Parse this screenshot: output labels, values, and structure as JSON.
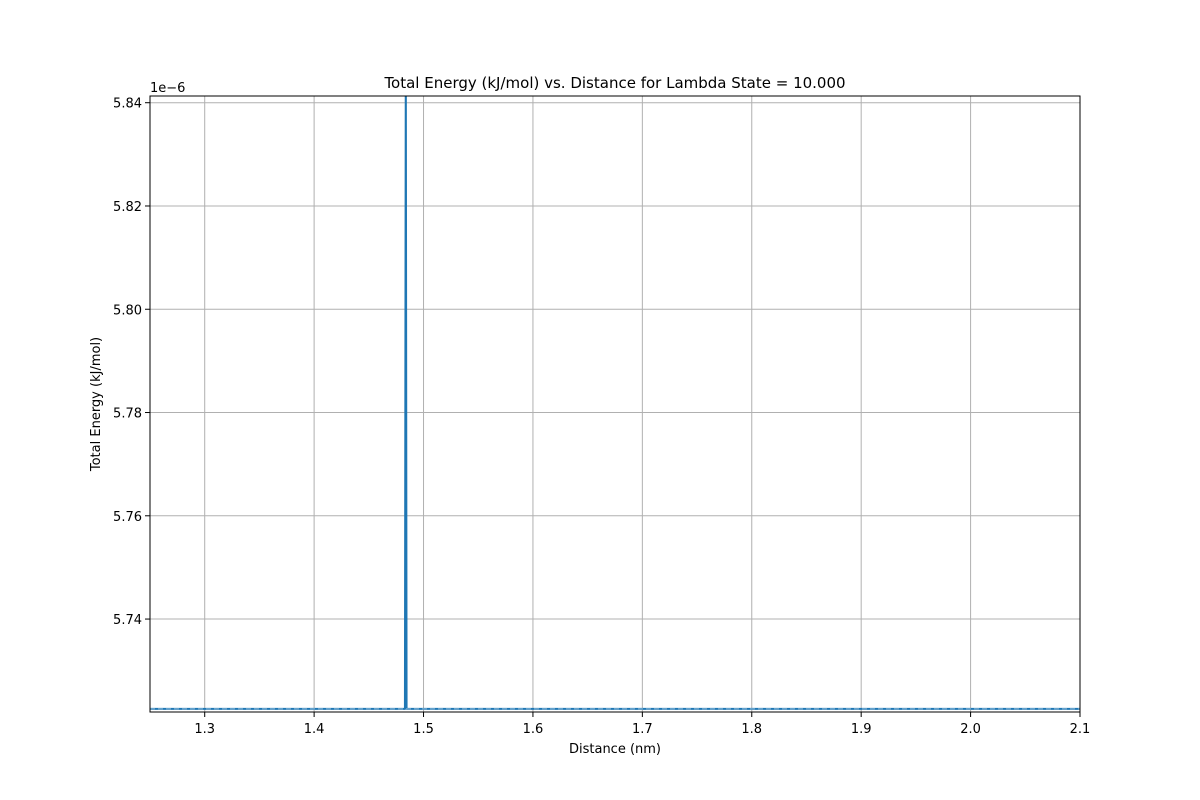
{
  "chart_data": {
    "type": "line",
    "title": "Total Energy (kJ/mol) vs. Distance for Lambda State = 10.000",
    "xlabel": "Distance (nm)",
    "ylabel": "Total Energy (kJ/mol)",
    "y_offset_label": "1e−6",
    "xlim": [
      1.25,
      2.1
    ],
    "ylim": [
      5.722,
      5.8413
    ],
    "x_ticks": [
      1.3,
      1.4,
      1.5,
      1.6,
      1.7,
      1.8,
      1.9,
      2.0,
      2.1
    ],
    "x_tick_labels": [
      "1.3",
      "1.4",
      "1.5",
      "1.6",
      "1.7",
      "1.8",
      "1.9",
      "2.0",
      "2.1"
    ],
    "y_ticks": [
      5.74,
      5.76,
      5.78,
      5.8,
      5.82,
      5.84
    ],
    "y_tick_labels": [
      "5.74",
      "5.76",
      "5.78",
      "5.80",
      "5.82",
      "5.84"
    ],
    "grid": true,
    "colors": {
      "line": "#1f77b4",
      "grid": "#b0b0b0",
      "axes": "#000000"
    },
    "series": [
      {
        "x": [
          1.25,
          1.483,
          1.4838,
          1.4845,
          1.4853,
          2.1
        ],
        "y": [
          5.7226,
          5.7226,
          5.85,
          5.7226,
          5.7226,
          5.7226
        ]
      }
    ]
  }
}
